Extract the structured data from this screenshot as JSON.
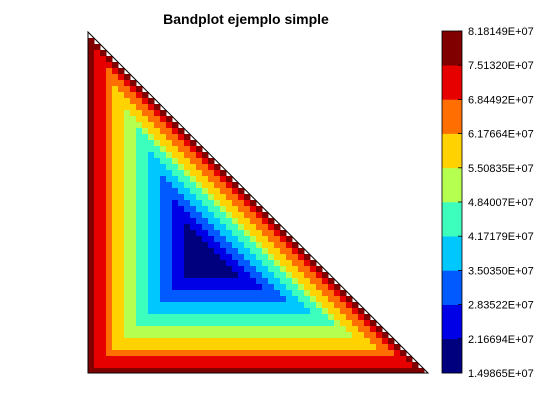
{
  "chart_data": {
    "type": "heatmap",
    "title": "Bandplot ejemplo simple",
    "colorbar": {
      "levels": [
        "1.49865E+07",
        "2.16694E+07",
        "2.83522E+07",
        "3.50350E+07",
        "4.17179E+07",
        "4.84007E+07",
        "5.50835E+07",
        "6.17664E+07",
        "6.84492E+07",
        "7.51320E+07",
        "8.18149E+07"
      ],
      "values": [
        14986500,
        21669400,
        28352200,
        35035000,
        41717900,
        48400700,
        55083500,
        61766400,
        68449200,
        75132000,
        81814900
      ],
      "colors": [
        "#00007f",
        "#0000e6",
        "#005aff",
        "#00c8ff",
        "#3cffbe",
        "#b4ff50",
        "#ffd200",
        "#ff6e00",
        "#e60000",
        "#800000"
      ]
    },
    "field": {
      "domain": "right triangle",
      "corner_values": {
        "top_left": 81814900,
        "bottom_left": 81814900,
        "bottom_right": 81814900
      },
      "min_value": 14986500
    },
    "grid": false,
    "legend_placement": "right"
  }
}
